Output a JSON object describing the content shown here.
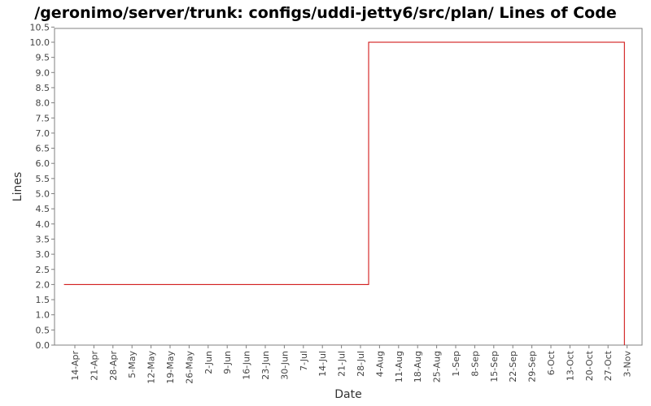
{
  "chart_data": {
    "type": "line",
    "title": "/geronimo/server/trunk: configs/uddi-jetty6/src/plan/ Lines of Code",
    "xlabel": "Date",
    "ylabel": "Lines",
    "ylim": [
      0,
      10.5
    ],
    "y_ticks": [
      "0.0",
      "0.5",
      "1.0",
      "1.5",
      "2.0",
      "2.5",
      "3.0",
      "3.5",
      "4.0",
      "4.5",
      "5.0",
      "5.5",
      "6.0",
      "6.5",
      "7.0",
      "7.5",
      "8.0",
      "8.5",
      "9.0",
      "9.5",
      "10.0",
      "10.5"
    ],
    "x_ticks": [
      "14-Apr",
      "21-Apr",
      "28-Apr",
      "5-May",
      "12-May",
      "19-May",
      "26-May",
      "2-Jun",
      "9-Jun",
      "16-Jun",
      "23-Jun",
      "30-Jun",
      "7-Jul",
      "14-Jul",
      "21-Jul",
      "28-Jul",
      "4-Aug",
      "11-Aug",
      "18-Aug",
      "25-Aug",
      "1-Sep",
      "8-Sep",
      "15-Sep",
      "22-Sep",
      "29-Sep",
      "6-Oct",
      "13-Oct",
      "20-Oct",
      "27-Oct",
      "3-Nov"
    ],
    "grid": false,
    "line_color": "#cc0000",
    "series": [
      {
        "step": true,
        "points": [
          {
            "x": "2007-04-10",
            "y": 2.0
          },
          {
            "x": "2007-07-31",
            "y": 2.0
          },
          {
            "x": "2007-07-31",
            "y": 10.0
          },
          {
            "x": "2007-11-02",
            "y": 10.0
          },
          {
            "x": "2007-11-02",
            "y": 0.0
          }
        ]
      }
    ]
  }
}
